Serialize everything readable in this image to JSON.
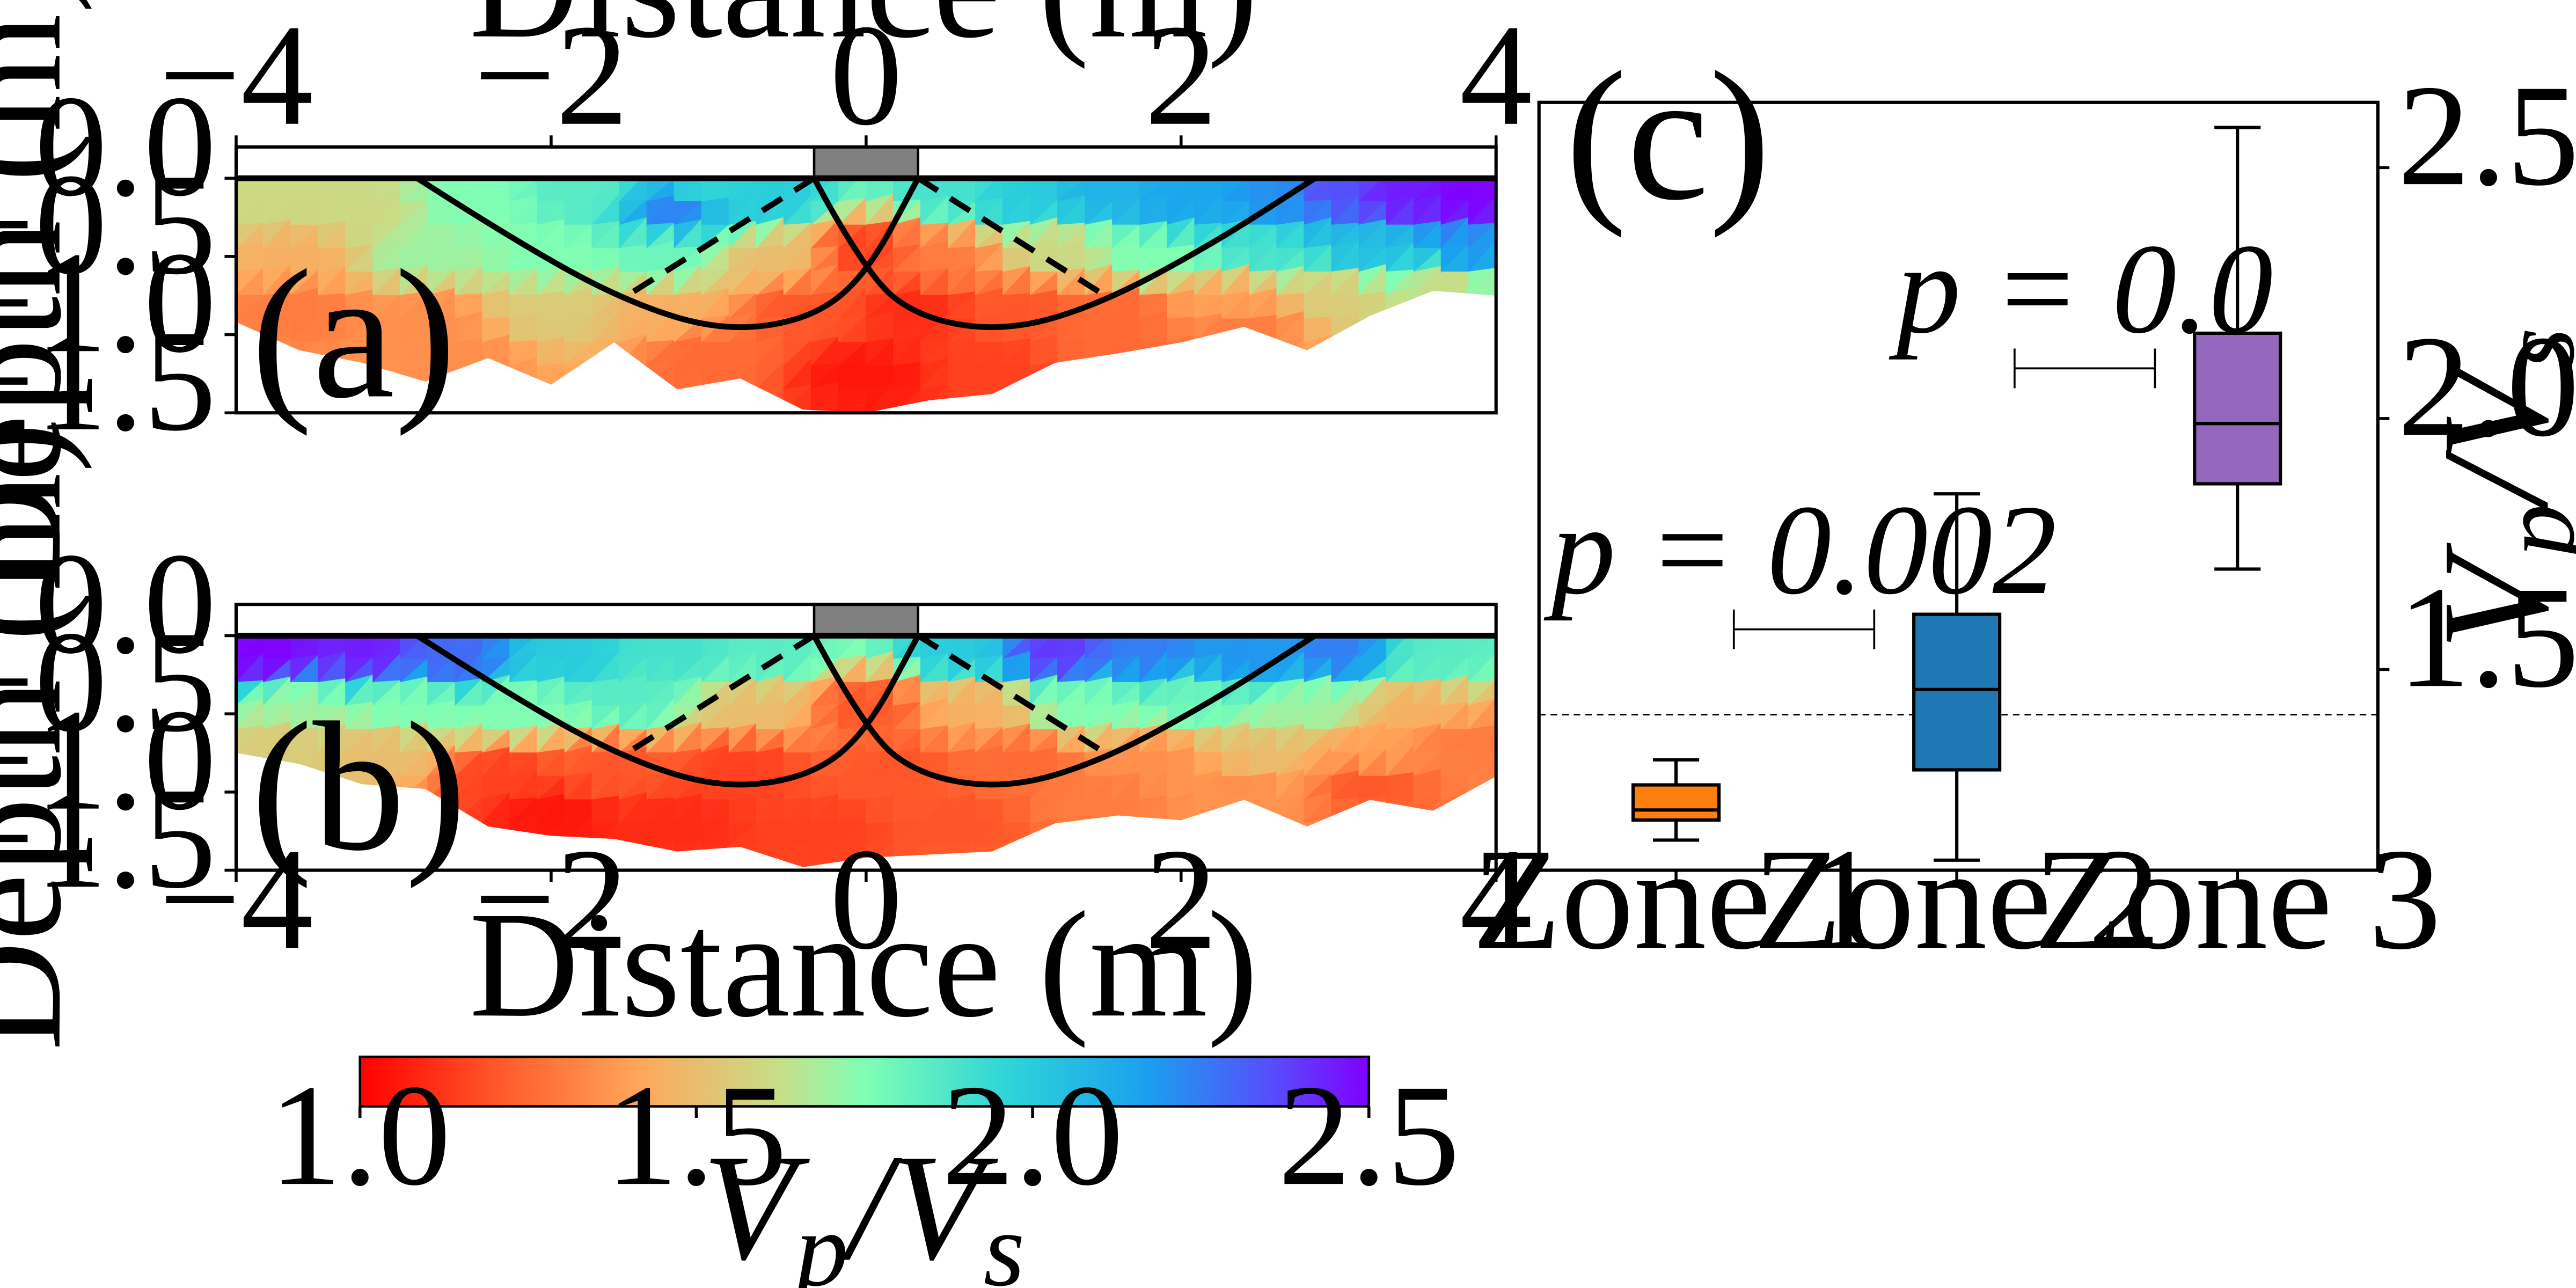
{
  "figure": {
    "panel_labels": {
      "a": "(a)",
      "b": "(b)",
      "c": "(c)"
    },
    "section_x_axis_label": "Distance (m)",
    "section_y_axis_label": "Depth (m)",
    "box_y_axis_label_html": "V<tspan baseline-shift='-25%' font-size='70%'>p</tspan>/V<tspan baseline-shift='-25%' font-size='70%'>s</tspan>",
    "colorbar_label": "Vp/Vs"
  },
  "chart_data": [
    {
      "id": "panel-a",
      "type": "heatmap",
      "xlabel": "Distance (m)",
      "ylabel": "Depth (m)",
      "x_ticks": [
        "−4",
        "−2",
        "0",
        "2",
        "4"
      ],
      "y_ticks": [
        "0.0",
        "−0.5",
        "−1.0",
        "−1.5"
      ],
      "xlim": [
        -4,
        4
      ],
      "ylim": [
        -1.5,
        0.2
      ],
      "x_tick_values": [
        -4,
        -2,
        0,
        2,
        4
      ],
      "y_tick_values": [
        0.0,
        -0.5,
        -1.0,
        -1.5
      ],
      "x_axis_position": "top",
      "footing": {
        "x_from": -0.33,
        "x_to": 0.33,
        "depth_top": 0.2,
        "depth_bottom": 0.0,
        "color": "#808080"
      },
      "coverage": {
        "top_depth": 0.0,
        "bottom_depth": [
          [
            -4.0,
            -0.92
          ],
          [
            -3.6,
            -1.1
          ],
          [
            -3.2,
            -1.18
          ],
          [
            -2.8,
            -1.3
          ],
          [
            -2.4,
            -1.15
          ],
          [
            -2.0,
            -1.32
          ],
          [
            -1.6,
            -1.05
          ],
          [
            -1.2,
            -1.35
          ],
          [
            -0.8,
            -1.28
          ],
          [
            -0.4,
            -1.48
          ],
          [
            0.0,
            -1.5
          ],
          [
            0.4,
            -1.42
          ],
          [
            0.8,
            -1.38
          ],
          [
            1.2,
            -1.18
          ],
          [
            1.6,
            -1.12
          ],
          [
            2.0,
            -1.05
          ],
          [
            2.4,
            -0.95
          ],
          [
            2.8,
            -1.1
          ],
          [
            3.2,
            -0.88
          ],
          [
            3.6,
            -0.72
          ],
          [
            4.0,
            -0.75
          ]
        ]
      },
      "vpvs_field": [
        {
          "x": -3.8,
          "y": -0.15,
          "v": 1.6
        },
        {
          "x": -3.2,
          "y": -0.2,
          "v": 1.6
        },
        {
          "x": -2.5,
          "y": -0.15,
          "v": 1.75
        },
        {
          "x": -1.8,
          "y": -0.1,
          "v": 1.85
        },
        {
          "x": -1.0,
          "y": -0.1,
          "v": 1.95
        },
        {
          "x": -1.2,
          "y": -0.2,
          "v": 2.25
        },
        {
          "x": -0.6,
          "y": -0.15,
          "v": 2.0
        },
        {
          "x": 0.5,
          "y": -0.1,
          "v": 1.9
        },
        {
          "x": 1.0,
          "y": -0.15,
          "v": 2.0
        },
        {
          "x": 1.5,
          "y": -0.12,
          "v": 2.1
        },
        {
          "x": 2.0,
          "y": -0.15,
          "v": 2.15
        },
        {
          "x": 2.6,
          "y": -0.15,
          "v": 2.2
        },
        {
          "x": 3.0,
          "y": -0.1,
          "v": 2.35
        },
        {
          "x": 3.4,
          "y": -0.12,
          "v": 2.45
        },
        {
          "x": 3.8,
          "y": -0.12,
          "v": 2.5
        },
        {
          "x": -3.6,
          "y": -0.5,
          "v": 1.45
        },
        {
          "x": -2.8,
          "y": -0.5,
          "v": 1.7
        },
        {
          "x": -2.0,
          "y": -0.5,
          "v": 1.75
        },
        {
          "x": -1.3,
          "y": -0.5,
          "v": 1.8
        },
        {
          "x": -0.6,
          "y": -0.5,
          "v": 1.5
        },
        {
          "x": 0.0,
          "y": -0.45,
          "v": 1.15
        },
        {
          "x": 0.5,
          "y": -0.5,
          "v": 1.3
        },
        {
          "x": 1.2,
          "y": -0.45,
          "v": 1.6
        },
        {
          "x": 1.8,
          "y": -0.5,
          "v": 1.75
        },
        {
          "x": 2.5,
          "y": -0.45,
          "v": 1.9
        },
        {
          "x": 3.2,
          "y": -0.45,
          "v": 2.05
        },
        {
          "x": 3.8,
          "y": -0.5,
          "v": 2.2
        },
        {
          "x": -3.6,
          "y": -0.85,
          "v": 1.3
        },
        {
          "x": -2.8,
          "y": -0.9,
          "v": 1.35
        },
        {
          "x": -2.0,
          "y": -0.85,
          "v": 1.55
        },
        {
          "x": -1.3,
          "y": -0.85,
          "v": 1.45
        },
        {
          "x": -0.4,
          "y": -0.85,
          "v": 1.2
        },
        {
          "x": 0.3,
          "y": -0.85,
          "v": 1.1
        },
        {
          "x": 1.0,
          "y": -0.85,
          "v": 1.2
        },
        {
          "x": 1.6,
          "y": -0.85,
          "v": 1.25
        },
        {
          "x": 2.3,
          "y": -0.8,
          "v": 1.4
        },
        {
          "x": 3.0,
          "y": -0.75,
          "v": 1.55
        },
        {
          "x": 3.7,
          "y": -0.65,
          "v": 1.6
        },
        {
          "x": -2.6,
          "y": -1.15,
          "v": 1.35
        },
        {
          "x": -1.0,
          "y": -1.15,
          "v": 1.25
        },
        {
          "x": 0.0,
          "y": -1.25,
          "v": 1.05
        },
        {
          "x": 0.8,
          "y": -1.2,
          "v": 1.15
        },
        {
          "x": 1.6,
          "y": -1.05,
          "v": 1.25
        },
        {
          "x": 2.4,
          "y": -0.95,
          "v": 1.3
        }
      ],
      "failure_curves": [
        {
          "style": "solid",
          "points": [
            [
              -2.85,
              0.0
            ],
            [
              -2.2,
              -0.42
            ],
            [
              -1.5,
              -0.8
            ],
            [
              -0.9,
              -0.98
            ],
            [
              -0.35,
              -0.9
            ],
            [
              0.0,
              -0.62
            ],
            [
              0.33,
              0.0
            ]
          ]
        },
        {
          "style": "solid",
          "points": [
            [
              -0.33,
              0.0
            ],
            [
              0.0,
              -0.62
            ],
            [
              0.35,
              -0.9
            ],
            [
              0.9,
              -0.98
            ],
            [
              1.5,
              -0.8
            ],
            [
              2.2,
              -0.42
            ],
            [
              2.85,
              0.0
            ]
          ]
        },
        {
          "style": "dashed",
          "points": [
            [
              -0.33,
              0.0
            ],
            [
              -1.55,
              -0.77
            ]
          ]
        },
        {
          "style": "dashed",
          "points": [
            [
              0.33,
              0.0
            ],
            [
              1.55,
              -0.77
            ]
          ]
        }
      ]
    },
    {
      "id": "panel-b",
      "type": "heatmap",
      "xlabel": "Distance (m)",
      "ylabel": "Depth (m)",
      "x_ticks": [
        "−4",
        "−2",
        "0",
        "2",
        "4"
      ],
      "y_ticks": [
        "0.0",
        "−0.5",
        "−1.0",
        "−1.5"
      ],
      "xlim": [
        -4,
        4
      ],
      "ylim": [
        -1.5,
        0.2
      ],
      "x_tick_values": [
        -4,
        -2,
        0,
        2,
        4
      ],
      "y_tick_values": [
        0.0,
        -0.5,
        -1.0,
        -1.5
      ],
      "x_axis_position": "bottom",
      "footing": {
        "x_from": -0.33,
        "x_to": 0.33,
        "depth_top": 0.2,
        "depth_bottom": 0.0,
        "color": "#808080"
      },
      "coverage": {
        "top_depth": 0.0,
        "bottom_depth": [
          [
            -4.0,
            -0.75
          ],
          [
            -3.6,
            -0.82
          ],
          [
            -3.2,
            -0.95
          ],
          [
            -2.8,
            -0.98
          ],
          [
            -2.4,
            -1.22
          ],
          [
            -2.0,
            -1.28
          ],
          [
            -1.6,
            -1.3
          ],
          [
            -1.2,
            -1.38
          ],
          [
            -0.8,
            -1.35
          ],
          [
            -0.4,
            -1.48
          ],
          [
            0.0,
            -1.42
          ],
          [
            0.4,
            -1.4
          ],
          [
            0.8,
            -1.38
          ],
          [
            1.2,
            -1.2
          ],
          [
            1.6,
            -1.15
          ],
          [
            2.0,
            -1.18
          ],
          [
            2.4,
            -1.05
          ],
          [
            2.8,
            -1.22
          ],
          [
            3.2,
            -1.05
          ],
          [
            3.6,
            -1.12
          ],
          [
            4.0,
            -0.9
          ]
        ]
      },
      "vpvs_field": [
        {
          "x": -3.8,
          "y": -0.12,
          "v": 2.5
        },
        {
          "x": -3.2,
          "y": -0.12,
          "v": 2.45
        },
        {
          "x": -2.6,
          "y": -0.15,
          "v": 2.3
        },
        {
          "x": -1.9,
          "y": -0.15,
          "v": 2.0
        },
        {
          "x": -1.2,
          "y": -0.12,
          "v": 1.9
        },
        {
          "x": -0.6,
          "y": -0.15,
          "v": 1.85
        },
        {
          "x": 0.6,
          "y": -0.12,
          "v": 2.0
        },
        {
          "x": 1.2,
          "y": -0.12,
          "v": 2.4
        },
        {
          "x": 1.8,
          "y": -0.12,
          "v": 2.25
        },
        {
          "x": 2.4,
          "y": -0.15,
          "v": 2.2
        },
        {
          "x": 3.0,
          "y": -0.12,
          "v": 2.25
        },
        {
          "x": 3.6,
          "y": -0.15,
          "v": 1.85
        },
        {
          "x": -3.6,
          "y": -0.45,
          "v": 1.7
        },
        {
          "x": -2.9,
          "y": -0.45,
          "v": 1.75
        },
        {
          "x": -2.2,
          "y": -0.45,
          "v": 1.75
        },
        {
          "x": -1.5,
          "y": -0.4,
          "v": 1.85
        },
        {
          "x": -0.7,
          "y": -0.45,
          "v": 1.5
        },
        {
          "x": 0.0,
          "y": -0.45,
          "v": 1.2
        },
        {
          "x": 0.7,
          "y": -0.45,
          "v": 1.45
        },
        {
          "x": 1.4,
          "y": -0.45,
          "v": 1.75
        },
        {
          "x": 2.1,
          "y": -0.4,
          "v": 1.8
        },
        {
          "x": 2.8,
          "y": -0.45,
          "v": 1.7
        },
        {
          "x": 3.5,
          "y": -0.45,
          "v": 1.45
        },
        {
          "x": -3.7,
          "y": -0.7,
          "v": 1.55
        },
        {
          "x": -3.1,
          "y": -0.75,
          "v": 1.5
        },
        {
          "x": -2.3,
          "y": -0.9,
          "v": 1.15
        },
        {
          "x": -1.6,
          "y": -0.85,
          "v": 1.2
        },
        {
          "x": -0.8,
          "y": -0.85,
          "v": 1.15
        },
        {
          "x": 0.2,
          "y": -0.85,
          "v": 1.2
        },
        {
          "x": 1.0,
          "y": -0.8,
          "v": 1.25
        },
        {
          "x": 1.8,
          "y": -0.8,
          "v": 1.35
        },
        {
          "x": 2.5,
          "y": -0.8,
          "v": 1.5
        },
        {
          "x": 3.2,
          "y": -0.75,
          "v": 1.4
        },
        {
          "x": 3.8,
          "y": -0.7,
          "v": 1.3
        },
        {
          "x": -2.0,
          "y": -1.15,
          "v": 1.05
        },
        {
          "x": -1.2,
          "y": -1.2,
          "v": 1.1
        },
        {
          "x": -0.3,
          "y": -1.25,
          "v": 1.15
        },
        {
          "x": 0.6,
          "y": -1.2,
          "v": 1.2
        },
        {
          "x": 1.5,
          "y": -1.05,
          "v": 1.3
        },
        {
          "x": 2.4,
          "y": -0.95,
          "v": 1.35
        },
        {
          "x": 3.2,
          "y": -0.95,
          "v": 1.2
        }
      ],
      "failure_curves": [
        {
          "style": "solid",
          "points": [
            [
              -2.85,
              0.0
            ],
            [
              -2.2,
              -0.42
            ],
            [
              -1.5,
              -0.8
            ],
            [
              -0.9,
              -0.98
            ],
            [
              -0.35,
              -0.9
            ],
            [
              0.0,
              -0.62
            ],
            [
              0.33,
              0.0
            ]
          ]
        },
        {
          "style": "solid",
          "points": [
            [
              -0.33,
              0.0
            ],
            [
              0.0,
              -0.62
            ],
            [
              0.35,
              -0.9
            ],
            [
              0.9,
              -0.98
            ],
            [
              1.5,
              -0.8
            ],
            [
              2.2,
              -0.42
            ],
            [
              2.85,
              0.0
            ]
          ]
        },
        {
          "style": "dashed",
          "points": [
            [
              -0.33,
              0.0
            ],
            [
              -1.55,
              -0.77
            ]
          ]
        },
        {
          "style": "dashed",
          "points": [
            [
              0.33,
              0.0
            ],
            [
              1.55,
              -0.77
            ]
          ]
        }
      ]
    },
    {
      "id": "panel-c",
      "type": "box",
      "categories": [
        "Zone 1",
        "Zone 2",
        "Zone 3"
      ],
      "y_ticks": [
        "1.5",
        "2.0",
        "2.5"
      ],
      "y_tick_values": [
        1.5,
        2.0,
        2.5
      ],
      "ylim": [
        1.1,
        2.63
      ],
      "y_axis_position": "right",
      "series": [
        {
          "whisker_low": 1.16,
          "q1": 1.2,
          "median": 1.22,
          "q3": 1.27,
          "whisker_high": 1.32,
          "color": "#ff7f0e"
        },
        {
          "whisker_low": 1.12,
          "q1": 1.3,
          "median": 1.46,
          "q3": 1.61,
          "whisker_high": 1.85,
          "color": "#1f77b4"
        },
        {
          "whisker_low": 1.7,
          "q1": 1.87,
          "median": 1.99,
          "q3": 2.17,
          "whisker_high": 2.58,
          "color": "#9467bd"
        }
      ],
      "reference_line": {
        "y": 1.41,
        "style": "dashed"
      },
      "significance": [
        {
          "between": [
            "Zone 1",
            "Zone 2"
          ],
          "label": "p = 0.002",
          "y": 1.58
        },
        {
          "between": [
            "Zone 2",
            "Zone 3"
          ],
          "label": "p = 0.0",
          "y": 2.1
        }
      ]
    },
    {
      "id": "colorbar",
      "type": "colorbar",
      "range": [
        1.0,
        2.5
      ],
      "ticks": [
        "1.0",
        "1.5",
        "2.0",
        "2.5"
      ],
      "tick_values": [
        1.0,
        1.5,
        2.0,
        2.5
      ],
      "colormap": "rainbow_r",
      "label": "Vp/Vs"
    }
  ]
}
